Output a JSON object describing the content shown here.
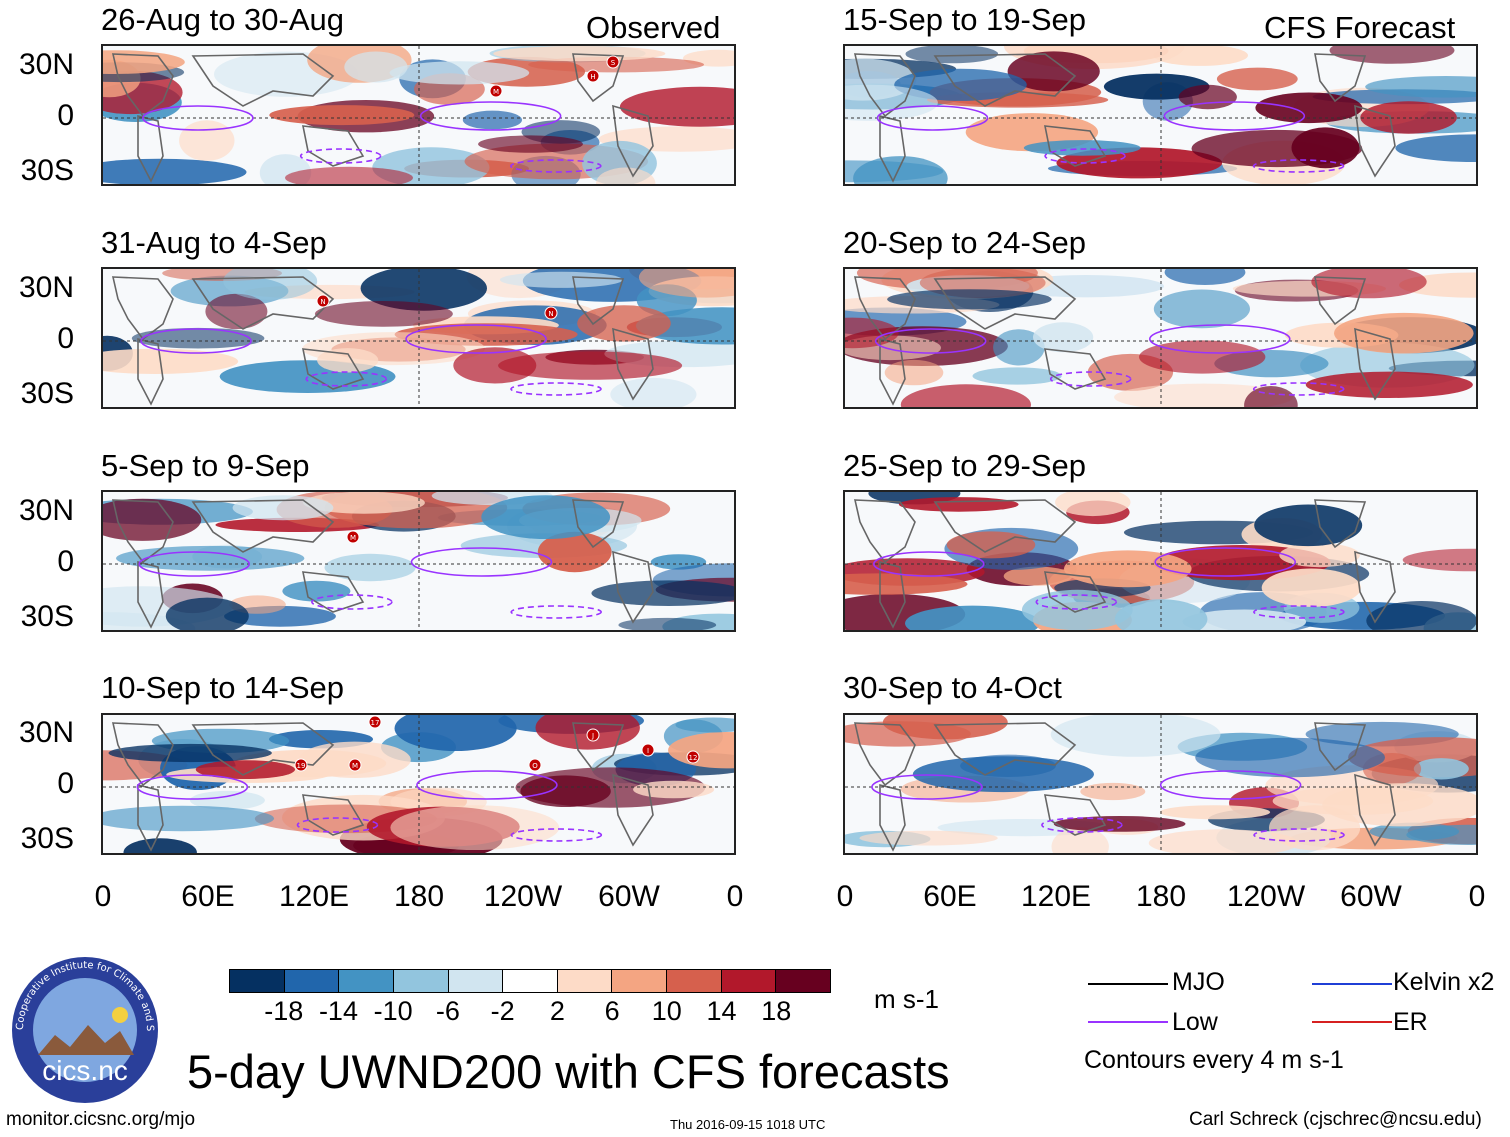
{
  "panels_left": [
    {
      "title": "26-Aug to 30-Aug",
      "corner": "Observed",
      "storms": [
        "M",
        "H",
        "S"
      ]
    },
    {
      "title": "31-Aug to 4-Sep",
      "corner": "",
      "storms": [
        "N",
        "N"
      ]
    },
    {
      "title": "5-Sep to 9-Sep",
      "corner": "",
      "storms": [
        "M"
      ]
    },
    {
      "title": "10-Sep to 14-Sep",
      "corner": "",
      "storms": [
        "17",
        "19",
        "M",
        "O",
        "J",
        "I",
        "12"
      ]
    }
  ],
  "panels_right": [
    {
      "title": "15-Sep to 19-Sep",
      "corner": "CFS Forecast"
    },
    {
      "title": "20-Sep to 24-Sep",
      "corner": ""
    },
    {
      "title": "25-Sep to 29-Sep",
      "corner": ""
    },
    {
      "title": "30-Sep to 4-Oct",
      "corner": ""
    }
  ],
  "y_ticks": [
    "30N",
    "0",
    "30S"
  ],
  "x_ticks": [
    "0",
    "60E",
    "120E",
    "180",
    "120W",
    "60W",
    "0"
  ],
  "colorbar": {
    "labels": [
      "-18",
      "-14",
      "-10",
      "-6",
      "-2",
      "2",
      "6",
      "10",
      "14",
      "18"
    ],
    "colors": [
      "#053061",
      "#2166ac",
      "#4393c3",
      "#92c5de",
      "#d1e5f0",
      "#ffffff",
      "#fddbc7",
      "#f4a582",
      "#d6604d",
      "#b2182b",
      "#67001f"
    ],
    "units": "m s-1"
  },
  "legend": {
    "mjo": {
      "label": "MJO",
      "color": "#000000"
    },
    "low": {
      "label": "Low",
      "color": "#9933ff"
    },
    "kelvin": {
      "label": "Kelvin x2",
      "color": "#1f3fd6"
    },
    "er": {
      "label": "ER",
      "color": "#d62020"
    },
    "note": "Contours every 4 m s-1"
  },
  "logo": {
    "ring_text": "Cooperative Institute for Climate and Satellites",
    "name": "cics.nc"
  },
  "title": "5-day UWND200 with CFS forecasts",
  "footer": {
    "url": "monitor.cicsnc.org/mjo",
    "timestamp": "Thu 2016-09-15 1018 UTC",
    "credit": "Carl Schreck (cjschrec@ncsu.edu)"
  }
}
